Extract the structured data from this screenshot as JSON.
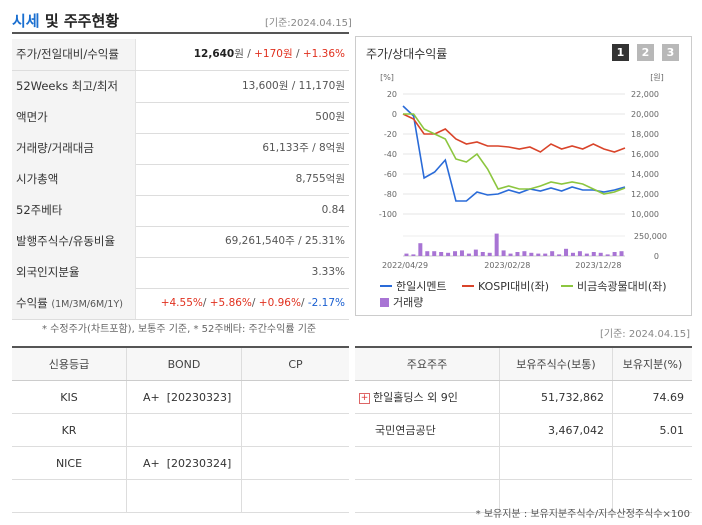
{
  "header": {
    "title_accent": "시세",
    "title_rest": " 및 주주현황",
    "date": "[기준:2024.04.15]"
  },
  "summary": {
    "rows": [
      {
        "label": "주가/전일대비/수익률",
        "v1": "12,640",
        "u1": "원 / ",
        "v2": "+170원",
        "s2": " / ",
        "v3": "+1.36%"
      },
      {
        "label": "52Weeks 최고/최저",
        "value": "13,600원 / 11,170원"
      },
      {
        "label": "액면가",
        "value": "500원"
      },
      {
        "label": "거래량/거래대금",
        "value": "61,133주 / 8억원"
      },
      {
        "label": "시가총액",
        "value": "8,755억원"
      },
      {
        "label": "52주베타",
        "value": "0.84"
      },
      {
        "label": "발행주식수/유동비율",
        "value": "69,261,540주 / 25.31%"
      },
      {
        "label": "외국인지분율",
        "value": "3.33%"
      },
      {
        "label": "수익률",
        "label_small": "(1M/3M/6M/1Y)",
        "r1": "+4.55%",
        "r2": "+5.86%",
        "r3": "+0.96%",
        "r4": "-2.17%",
        "sep": "/ "
      }
    ],
    "note": "* 수정주가(차트포함), 보통주 기준, * 52주베타: 주간수익률 기준"
  },
  "chart": {
    "title": "주가/상대수익률",
    "tabs": [
      "1",
      "2",
      "3"
    ],
    "left_unit": "[%]",
    "right_unit": "[원]",
    "legend": [
      {
        "label": "한일시멘트",
        "color": "#2a6bd8"
      },
      {
        "label": "KOSPI대비(좌)",
        "color": "#d9442a"
      },
      {
        "label": "비금속광물대비(좌)",
        "color": "#8cc63f"
      },
      {
        "label": "거래량",
        "color": "#a874d4"
      }
    ]
  },
  "chart_data": {
    "type": "line",
    "x_tick_labels": [
      "2022/04/29",
      "2023/02/28",
      "2023/12/28"
    ],
    "left_axis": {
      "ticks": [
        "20",
        "0",
        "-20",
        "-40",
        "-60",
        "-80",
        "-100"
      ],
      "ylim": [
        -100,
        20
      ]
    },
    "right_axis": {
      "ticks": [
        "22,000",
        "20,000",
        "18,000",
        "16,000",
        "14,000",
        "12,000",
        "10,000"
      ],
      "ylim": [
        10000,
        22000
      ]
    },
    "volume_axis": {
      "ticks": [
        "250,000",
        "0"
      ],
      "ylim": [
        0,
        250000
      ]
    },
    "series": [
      {
        "name": "한일시멘트",
        "axis": "right",
        "values": [
          20800,
          19800,
          13600,
          14200,
          15400,
          11300,
          11300,
          12200,
          11900,
          12000,
          12400,
          12100,
          12500,
          12300,
          12600,
          12300,
          12700,
          12400,
          12400,
          12200,
          12400,
          12700
        ]
      },
      {
        "name": "KOSPI대비(좌)",
        "axis": "left",
        "values": [
          0,
          -5,
          -20,
          -20,
          -15,
          -25,
          -30,
          -28,
          -32,
          -32,
          -33,
          -35,
          -33,
          -38,
          -30,
          -35,
          -32,
          -35,
          -30,
          -35,
          -38,
          -34
        ]
      },
      {
        "name": "비금속광물대비(좌)",
        "axis": "left",
        "values": [
          0,
          0,
          -15,
          -20,
          -25,
          -45,
          -48,
          -40,
          -55,
          -75,
          -72,
          -75,
          -75,
          -72,
          -68,
          -70,
          -68,
          -70,
          -75,
          -80,
          -78,
          -74
        ]
      },
      {
        "name": "거래량",
        "axis": "volume",
        "values": [
          30000,
          20000,
          160000,
          60000,
          60000,
          50000,
          40000,
          60000,
          70000,
          30000,
          80000,
          50000,
          40000,
          280000,
          70000,
          30000,
          50000,
          60000,
          40000,
          30000,
          30000,
          60000,
          20000,
          90000,
          40000,
          60000,
          30000,
          50000,
          40000,
          20000,
          50000,
          60000
        ]
      }
    ]
  },
  "right_date": "[기준: 2024.04.15]",
  "credit": {
    "headers": [
      "신용등급",
      "BOND",
      "CP"
    ],
    "rows": [
      {
        "agency": "KIS",
        "bond": "A+  [20230323]",
        "cp": ""
      },
      {
        "agency": "KR",
        "bond": "",
        "cp": ""
      },
      {
        "agency": "NICE",
        "bond": "A+  [20230324]",
        "cp": ""
      },
      {
        "agency": "",
        "bond": "",
        "cp": ""
      }
    ]
  },
  "shareholders": {
    "headers": [
      "주요주주",
      "보유주식수(보통)",
      "보유지분(%)"
    ],
    "rows": [
      {
        "name": "한일홀딩스 외 9인",
        "shares": "51,732,862",
        "pct": "74.69",
        "expand_icon": "plus-icon"
      },
      {
        "name": "국민연금공단",
        "shares": "3,467,042",
        "pct": "5.01"
      }
    ],
    "note": "* 보유지분 : 보유지분주식수/지수산정주식수×100"
  }
}
